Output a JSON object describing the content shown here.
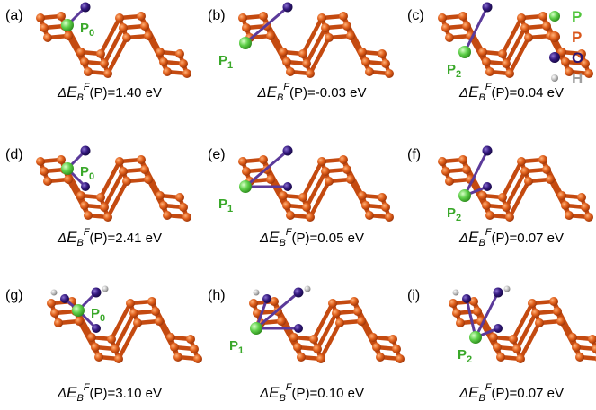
{
  "panels": [
    {
      "label": "(a)",
      "site": {
        "symbol": "P",
        "sub": "0"
      },
      "caption": {
        "delta": "Δ",
        "symbol": "E",
        "sub": "B",
        "sup": "F",
        "text": "(P)=1.40 eV"
      }
    },
    {
      "label": "(b)",
      "site": {
        "symbol": "P",
        "sub": "1"
      },
      "caption": {
        "delta": "Δ",
        "symbol": "E",
        "sub": "B",
        "sup": "F",
        "text": "(P)=-0.03 eV"
      }
    },
    {
      "label": "(c)",
      "site": {
        "symbol": "P",
        "sub": "2"
      },
      "caption": {
        "delta": "Δ",
        "symbol": "E",
        "sub": "B",
        "sup": "F",
        "text": "(P)=0.04 eV"
      }
    },
    {
      "label": "(d)",
      "site": {
        "symbol": "P",
        "sub": "0"
      },
      "caption": {
        "delta": "Δ",
        "symbol": "E",
        "sub": "B",
        "sup": "F",
        "text": "(P)=2.41 eV"
      }
    },
    {
      "label": "(e)",
      "site": {
        "symbol": "P",
        "sub": "1"
      },
      "caption": {
        "delta": "Δ",
        "symbol": "E",
        "sub": "B",
        "sup": "F",
        "text": "(P)=0.05 eV"
      }
    },
    {
      "label": "(f)",
      "site": {
        "symbol": "P",
        "sub": "2"
      },
      "caption": {
        "delta": "Δ",
        "symbol": "E",
        "sub": "B",
        "sup": "F",
        "text": "(P)=0.07 eV"
      }
    },
    {
      "label": "(g)",
      "site": {
        "symbol": "P",
        "sub": "0"
      },
      "caption": {
        "delta": "Δ",
        "symbol": "E",
        "sub": "B",
        "sup": "F",
        "text": "(P)=3.10 eV"
      }
    },
    {
      "label": "(h)",
      "site": {
        "symbol": "P",
        "sub": "1"
      },
      "caption": {
        "delta": "Δ",
        "symbol": "E",
        "sub": "B",
        "sup": "F",
        "text": "(P)=0.10 eV"
      }
    },
    {
      "label": "(i)",
      "site": {
        "symbol": "P",
        "sub": "2"
      },
      "caption": {
        "delta": "Δ",
        "symbol": "E",
        "sub": "B",
        "sup": "F",
        "text": "(P)=0.07 eV"
      }
    }
  ],
  "legend": [
    {
      "label": "P",
      "color": "#4fc43a"
    },
    {
      "label": "P",
      "color": "#d9561a"
    },
    {
      "label": "O",
      "color": "#2d1470"
    },
    {
      "label": "H",
      "color": "#a0a0a0"
    }
  ]
}
